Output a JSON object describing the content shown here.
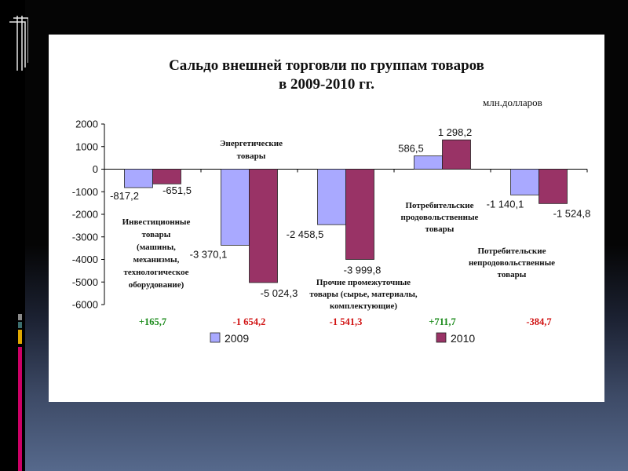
{
  "slide": {
    "title_line1": "Сальдо внешней торговли по группам товаров",
    "title_line2": "в 2009-2010 гг.",
    "units": "млн.долларов",
    "colors": {
      "series_2009": "#a9a9ff",
      "series_2010": "#993366",
      "positive": "#1a8a1a",
      "negative": "#d01010"
    }
  },
  "chart_data": {
    "type": "bar",
    "title": "Сальдо внешней торговли по группам товаров в 2009-2010 гг.",
    "ylabel": "",
    "xlabel": "",
    "ylim": [
      -6000,
      2000
    ],
    "yticks": [
      "2000",
      "1000",
      "0",
      "-1000",
      "-2000",
      "-3000",
      "-4000",
      "-5000",
      "-6000"
    ],
    "grid": false,
    "legend": "bottom",
    "categories": [
      "Инвестиционные товары (машины, механизмы, технологическое оборудование)",
      "Энергетические товары",
      "Прочие промежуточные товары (сырье, материалы, комплектующие)",
      "Потребительские продовольственные товары",
      "Потребительские непродовольственные товары"
    ],
    "series": [
      {
        "name": "2009",
        "values": [
          -817.2,
          -3370.1,
          -2458.5,
          586.5,
          -1140.1
        ],
        "labels": [
          "-817,2",
          "-3 370,1",
          "-2 458,5",
          "586,5",
          "-1 140,1"
        ]
      },
      {
        "name": "2010",
        "values": [
          -651.5,
          -5024.3,
          -3999.8,
          1298.2,
          -1524.8
        ],
        "labels": [
          "-651,5",
          "-5 024,3",
          "-3 999,8",
          "1 298,2",
          "-1 524,8"
        ]
      }
    ],
    "annotations": [
      [
        "Инвестиционные",
        "товары",
        "(машины,",
        "механизмы,",
        "технологическое",
        "оборудование)"
      ],
      [
        "Энергетические",
        "товары"
      ],
      [
        "Прочие промежуточные",
        "товары (сырье, материалы,",
        "комплектующие)"
      ],
      [
        "Потребительские",
        "продовольственные",
        "товары"
      ],
      [
        "Потребительские",
        "непродовольственные",
        "товары"
      ]
    ],
    "change": [
      "+165,7",
      "-1 654,2",
      "-1 541,3",
      "+711,7",
      "-384,7"
    ],
    "change_sign": [
      "positive",
      "negative",
      "negative",
      "positive",
      "negative"
    ]
  }
}
